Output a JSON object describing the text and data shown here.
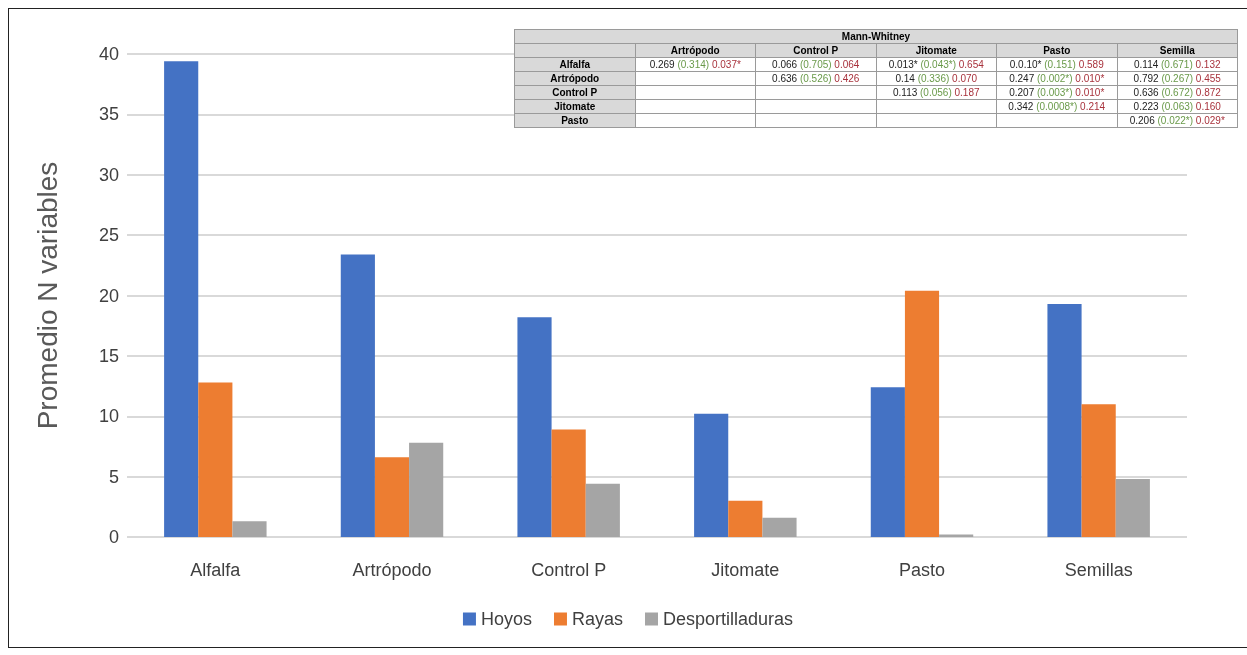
{
  "chart_data": {
    "type": "bar",
    "ylabel": "Promedio N variables",
    "categories": [
      "Alfalfa",
      "Artrópodo",
      "Control P",
      "Jitomate",
      "Pasto",
      "Semillas"
    ],
    "series": [
      {
        "name": "Hoyos",
        "color": "#4472c4",
        "values": [
          39.4,
          23.4,
          18.2,
          10.2,
          12.4,
          19.3
        ]
      },
      {
        "name": "Rayas",
        "color": "#ed7d31",
        "values": [
          12.8,
          6.6,
          8.9,
          3.0,
          20.4,
          11.0
        ]
      },
      {
        "name": "Desportilladuras",
        "color": "#a5a5a5",
        "values": [
          1.3,
          7.8,
          4.4,
          1.6,
          0.2,
          4.8
        ]
      }
    ],
    "ylim": [
      0,
      40
    ],
    "yticks": [
      0,
      5,
      10,
      15,
      20,
      25,
      30,
      35,
      40
    ],
    "grid": "y",
    "legend": "bottom",
    "annotations": [
      "Mann-Whitney",
      "Artrópodo",
      "Control P",
      "Jitomate",
      "Pasto",
      "Semilla",
      "Alfalfa",
      "0.269 (0.314) 0.037*",
      "0.066 (0.705) 0.064",
      "0.013* (0.043*) 0.654",
      "0.0.10* (0.151) 0.589",
      "0.114 (0.671) 0.132",
      "Artrópodo",
      "0.636 (0.526) 0.426",
      "0.14 (0.336) 0.070",
      "0.247 (0.002*) 0.010*",
      "0.792 (0.267) 0.455",
      "Control P",
      "0.113 (0.056) 0.187",
      "0.207 (0.003*) 0.010*",
      "0.636 (0.672) 0.872",
      "Jitomate",
      "0.342 (0.0008*) 0.214",
      "0.223 (0.063) 0.160",
      "Pasto",
      "0.206 (0.022*) 0.029*"
    ]
  }
}
